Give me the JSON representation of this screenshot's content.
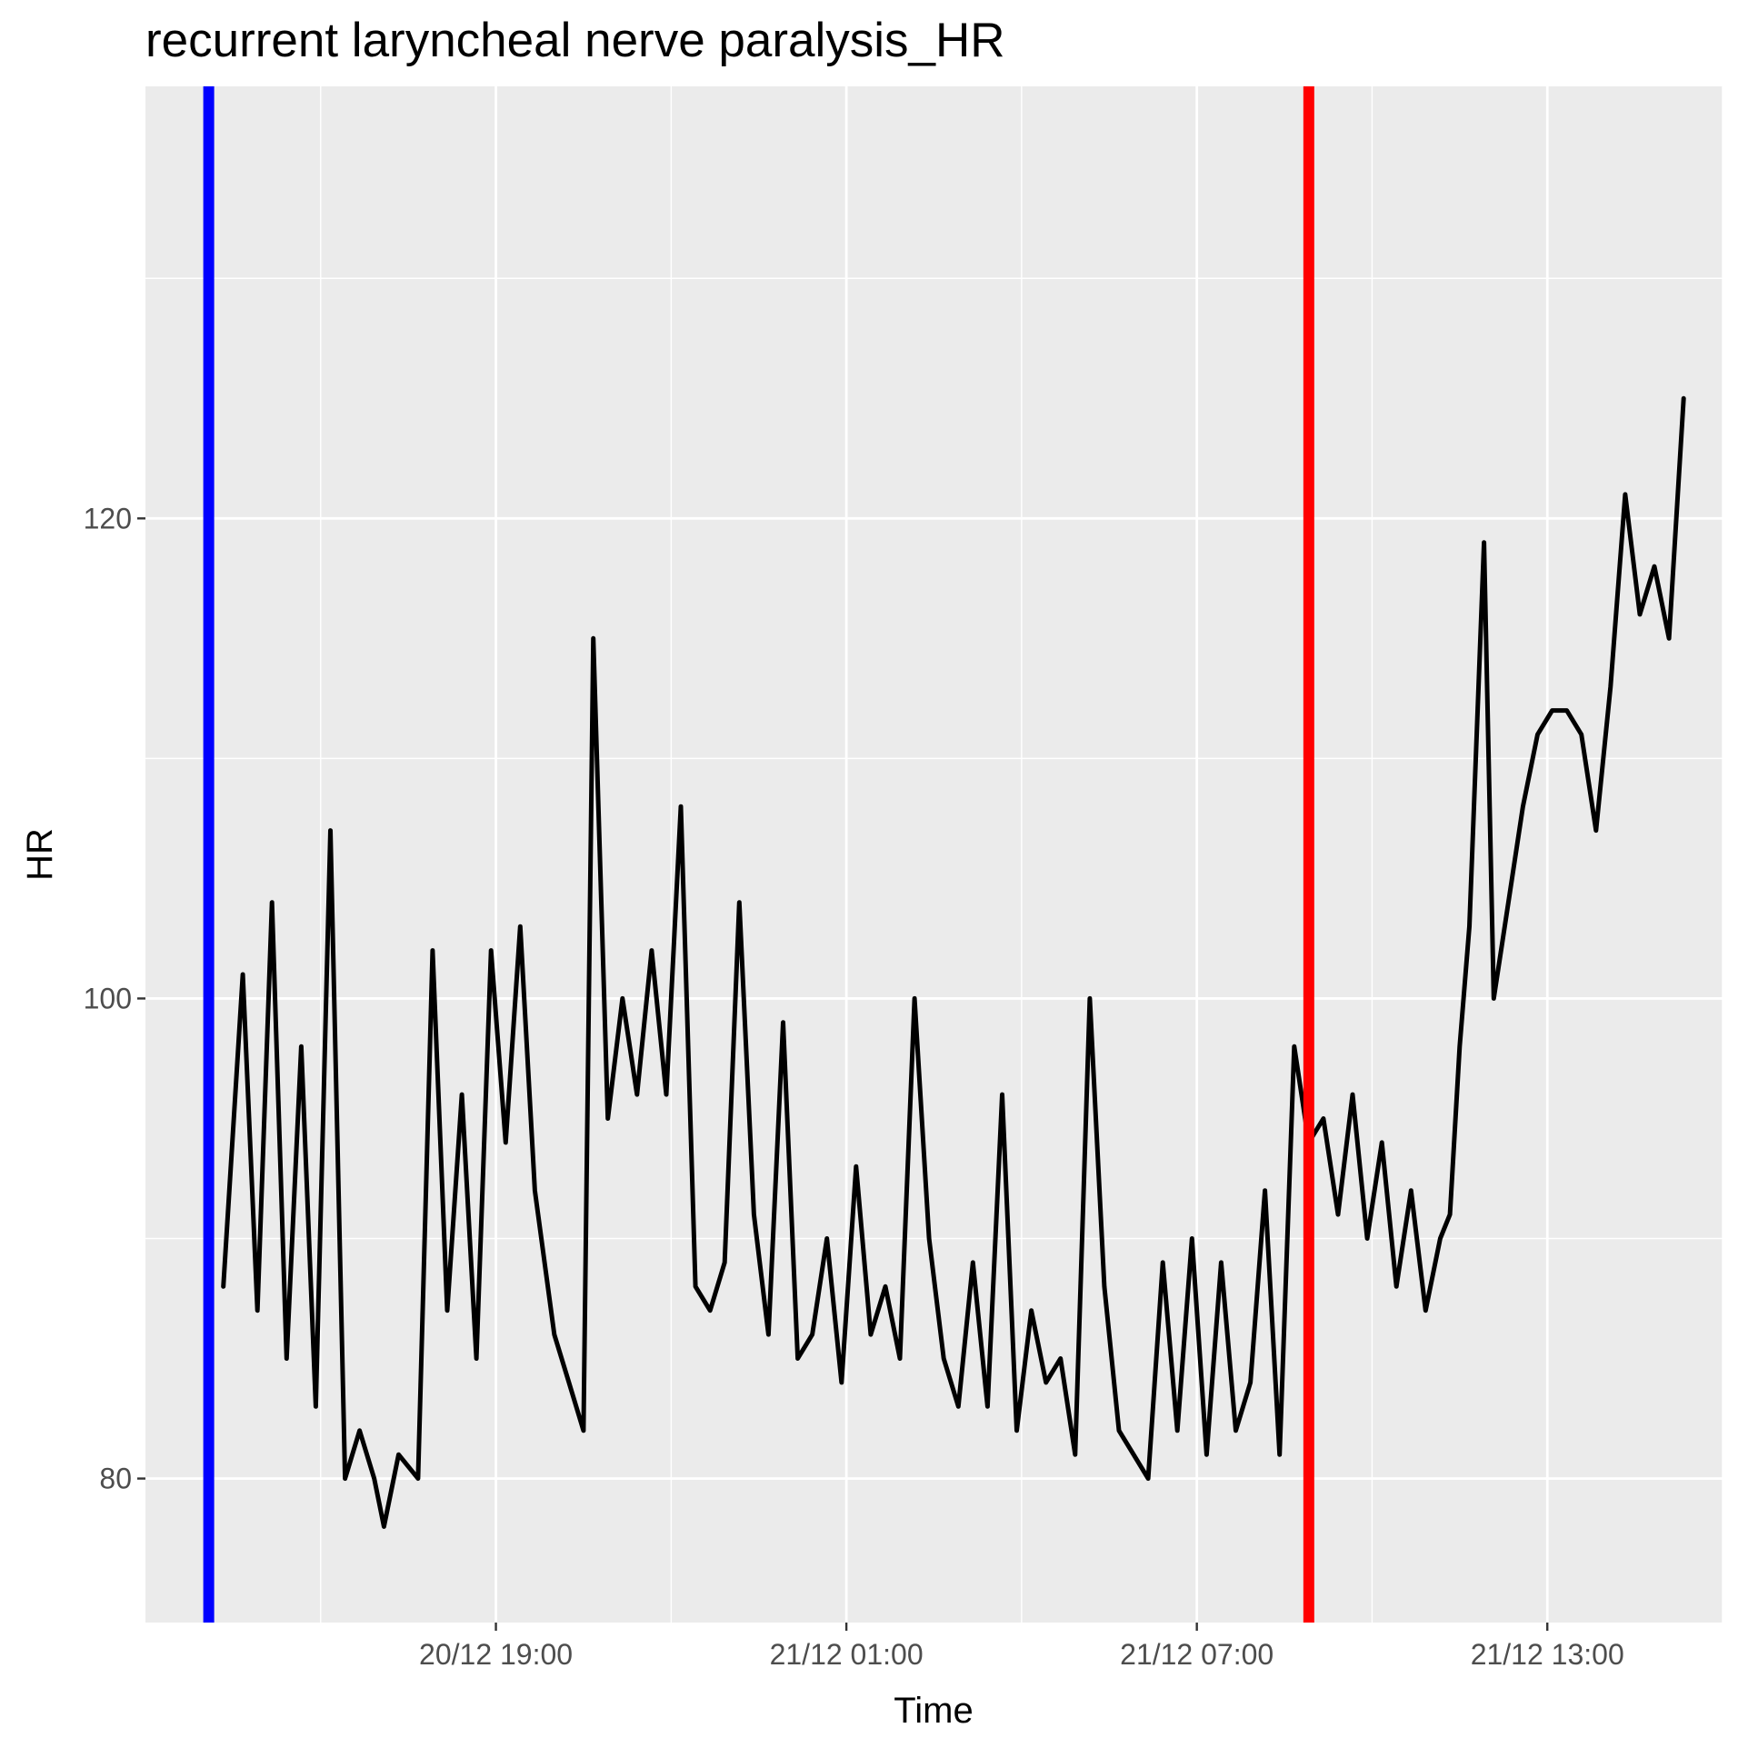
{
  "chart_data": {
    "type": "line",
    "title": "recurrent laryncheal nerve paralysis_HR",
    "xlabel": "Time",
    "ylabel": "HR",
    "x_unit": "datetime",
    "xlim": [
      "2020-12-20 13:00",
      "2020-12-21 16:00"
    ],
    "ylim": [
      74,
      138
    ],
    "x_ticks": [
      {
        "value": "2020-12-20 19:00",
        "label": "20/12 19:00"
      },
      {
        "value": "2020-12-21 01:00",
        "label": "21/12 01:00"
      },
      {
        "value": "2020-12-21 07:00",
        "label": "21/12 07:00"
      },
      {
        "value": "2020-12-21 13:00",
        "label": "21/12 13:00"
      }
    ],
    "y_ticks": [
      80,
      100,
      120
    ],
    "grid": true,
    "legend": "none",
    "background": "#ebebeb",
    "grid_color": "#ffffff",
    "tick_label_color": "#4d4d4d",
    "line_color": "#000000",
    "vlines": [
      {
        "x": "2020-12-20 14:05",
        "color": "#0000ff"
      },
      {
        "x": "2020-12-21 08:55",
        "color": "#ff0000"
      }
    ],
    "series": [
      {
        "color": "#000000",
        "points": [
          [
            "2020-12-20 14:20",
            88
          ],
          [
            "2020-12-20 14:40",
            101
          ],
          [
            "2020-12-20 14:55",
            87
          ],
          [
            "2020-12-20 15:10",
            104
          ],
          [
            "2020-12-20 15:25",
            85
          ],
          [
            "2020-12-20 15:40",
            98
          ],
          [
            "2020-12-20 15:55",
            83
          ],
          [
            "2020-12-20 16:10",
            107
          ],
          [
            "2020-12-20 16:25",
            80
          ],
          [
            "2020-12-20 16:40",
            82
          ],
          [
            "2020-12-20 16:55",
            80
          ],
          [
            "2020-12-20 17:05",
            78
          ],
          [
            "2020-12-20 17:20",
            81
          ],
          [
            "2020-12-20 17:40",
            80
          ],
          [
            "2020-12-20 17:55",
            102
          ],
          [
            "2020-12-20 18:10",
            87
          ],
          [
            "2020-12-20 18:25",
            96
          ],
          [
            "2020-12-20 18:40",
            85
          ],
          [
            "2020-12-20 18:55",
            102
          ],
          [
            "2020-12-20 19:10",
            94
          ],
          [
            "2020-12-20 19:25",
            103
          ],
          [
            "2020-12-20 19:40",
            92
          ],
          [
            "2020-12-20 20:00",
            86
          ],
          [
            "2020-12-20 20:15",
            84
          ],
          [
            "2020-12-20 20:30",
            82
          ],
          [
            "2020-12-20 20:40",
            115
          ],
          [
            "2020-12-20 20:55",
            95
          ],
          [
            "2020-12-20 21:10",
            100
          ],
          [
            "2020-12-20 21:25",
            96
          ],
          [
            "2020-12-20 21:40",
            102
          ],
          [
            "2020-12-20 21:55",
            96
          ],
          [
            "2020-12-20 22:10",
            108
          ],
          [
            "2020-12-20 22:25",
            88
          ],
          [
            "2020-12-20 22:40",
            87
          ],
          [
            "2020-12-20 22:55",
            89
          ],
          [
            "2020-12-20 23:10",
            104
          ],
          [
            "2020-12-20 23:25",
            91
          ],
          [
            "2020-12-20 23:40",
            86
          ],
          [
            "2020-12-20 23:55",
            99
          ],
          [
            "2020-12-21 00:10",
            85
          ],
          [
            "2020-12-21 00:25",
            86
          ],
          [
            "2020-12-21 00:40",
            90
          ],
          [
            "2020-12-21 00:55",
            84
          ],
          [
            "2020-12-21 01:10",
            93
          ],
          [
            "2020-12-21 01:25",
            86
          ],
          [
            "2020-12-21 01:40",
            88
          ],
          [
            "2020-12-21 01:55",
            85
          ],
          [
            "2020-12-21 02:10",
            100
          ],
          [
            "2020-12-21 02:25",
            90
          ],
          [
            "2020-12-21 02:40",
            85
          ],
          [
            "2020-12-21 02:55",
            83
          ],
          [
            "2020-12-21 03:10",
            89
          ],
          [
            "2020-12-21 03:25",
            83
          ],
          [
            "2020-12-21 03:40",
            96
          ],
          [
            "2020-12-21 03:55",
            82
          ],
          [
            "2020-12-21 04:10",
            87
          ],
          [
            "2020-12-21 04:25",
            84
          ],
          [
            "2020-12-21 04:40",
            85
          ],
          [
            "2020-12-21 04:55",
            81
          ],
          [
            "2020-12-21 05:10",
            100
          ],
          [
            "2020-12-21 05:25",
            88
          ],
          [
            "2020-12-21 05:40",
            82
          ],
          [
            "2020-12-21 05:55",
            81
          ],
          [
            "2020-12-21 06:10",
            80
          ],
          [
            "2020-12-21 06:25",
            89
          ],
          [
            "2020-12-21 06:40",
            82
          ],
          [
            "2020-12-21 06:55",
            90
          ],
          [
            "2020-12-21 07:10",
            81
          ],
          [
            "2020-12-21 07:25",
            89
          ],
          [
            "2020-12-21 07:40",
            82
          ],
          [
            "2020-12-21 07:55",
            84
          ],
          [
            "2020-12-21 08:10",
            92
          ],
          [
            "2020-12-21 08:25",
            81
          ],
          [
            "2020-12-21 08:40",
            98
          ],
          [
            "2020-12-21 08:55",
            94
          ],
          [
            "2020-12-21 09:10",
            95
          ],
          [
            "2020-12-21 09:25",
            91
          ],
          [
            "2020-12-21 09:40",
            96
          ],
          [
            "2020-12-21 09:55",
            90
          ],
          [
            "2020-12-21 10:10",
            94
          ],
          [
            "2020-12-21 10:25",
            88
          ],
          [
            "2020-12-21 10:40",
            92
          ],
          [
            "2020-12-21 10:55",
            87
          ],
          [
            "2020-12-21 11:10",
            90
          ],
          [
            "2020-12-21 11:20",
            91
          ],
          [
            "2020-12-21 11:30",
            98
          ],
          [
            "2020-12-21 11:40",
            103
          ],
          [
            "2020-12-21 11:55",
            119
          ],
          [
            "2020-12-21 12:05",
            100
          ],
          [
            "2020-12-21 12:20",
            104
          ],
          [
            "2020-12-21 12:35",
            108
          ],
          [
            "2020-12-21 12:50",
            111
          ],
          [
            "2020-12-21 13:05",
            112
          ],
          [
            "2020-12-21 13:20",
            112
          ],
          [
            "2020-12-21 13:35",
            111
          ],
          [
            "2020-12-21 13:50",
            107
          ],
          [
            "2020-12-21 14:05",
            113
          ],
          [
            "2020-12-21 14:20",
            121
          ],
          [
            "2020-12-21 14:35",
            116
          ],
          [
            "2020-12-21 14:50",
            118
          ],
          [
            "2020-12-21 15:05",
            115
          ],
          [
            "2020-12-21 15:20",
            125
          ]
        ]
      }
    ]
  }
}
